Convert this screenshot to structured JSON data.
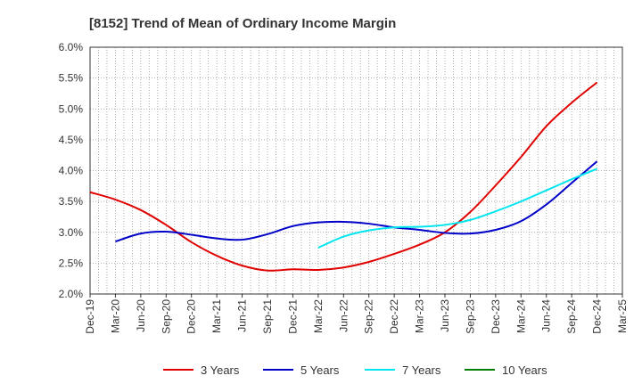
{
  "chart_data": {
    "type": "line",
    "title": "[8152]  Trend of Mean of Ordinary Income Margin",
    "xlabel": "",
    "ylabel": "",
    "x_ticks": [
      "Dec-19",
      "Mar-20",
      "Jun-20",
      "Sep-20",
      "Dec-20",
      "Mar-21",
      "Jun-21",
      "Sep-21",
      "Dec-21",
      "Mar-22",
      "Jun-22",
      "Sep-22",
      "Dec-22",
      "Mar-23",
      "Jun-23",
      "Sep-23",
      "Dec-23",
      "Mar-24",
      "Jun-24",
      "Sep-24",
      "Dec-24",
      "Mar-25"
    ],
    "y_ticks": [
      "2.0%",
      "2.5%",
      "3.0%",
      "3.5%",
      "4.0%",
      "4.5%",
      "5.0%",
      "5.5%",
      "6.0%"
    ],
    "ylim": [
      2.0,
      6.0
    ],
    "grid": true,
    "legend_position": "bottom",
    "series": [
      {
        "name": "3 Years",
        "color": "#e00000",
        "points": [
          [
            "Dec-19",
            3.65
          ],
          [
            "Mar-20",
            3.53
          ],
          [
            "Jun-20",
            3.36
          ],
          [
            "Sep-20",
            3.12
          ],
          [
            "Dec-20",
            2.84
          ],
          [
            "Mar-21",
            2.62
          ],
          [
            "Jun-21",
            2.46
          ],
          [
            "Sep-21",
            2.38
          ],
          [
            "Dec-21",
            2.4
          ],
          [
            "Mar-22",
            2.39
          ],
          [
            "Jun-22",
            2.43
          ],
          [
            "Sep-22",
            2.52
          ],
          [
            "Dec-22",
            2.65
          ],
          [
            "Mar-23",
            2.8
          ],
          [
            "Jun-23",
            3.0
          ],
          [
            "Sep-23",
            3.33
          ],
          [
            "Dec-23",
            3.76
          ],
          [
            "Mar-24",
            4.22
          ],
          [
            "Jun-24",
            4.72
          ],
          [
            "Sep-24",
            5.1
          ],
          [
            "Dec-24",
            5.43
          ]
        ]
      },
      {
        "name": "5 Years",
        "color": "#0000c8",
        "points": [
          [
            "Mar-20",
            2.85
          ],
          [
            "Jun-20",
            2.98
          ],
          [
            "Sep-20",
            3.01
          ],
          [
            "Dec-20",
            2.96
          ],
          [
            "Mar-21",
            2.9
          ],
          [
            "Jun-21",
            2.88
          ],
          [
            "Sep-21",
            2.97
          ],
          [
            "Dec-21",
            3.1
          ],
          [
            "Mar-22",
            3.16
          ],
          [
            "Jun-22",
            3.17
          ],
          [
            "Sep-22",
            3.14
          ],
          [
            "Dec-22",
            3.08
          ],
          [
            "Mar-23",
            3.04
          ],
          [
            "Jun-23",
            2.99
          ],
          [
            "Sep-23",
            2.98
          ],
          [
            "Dec-23",
            3.04
          ],
          [
            "Mar-24",
            3.18
          ],
          [
            "Jun-24",
            3.45
          ],
          [
            "Sep-24",
            3.8
          ],
          [
            "Dec-24",
            4.15
          ]
        ]
      },
      {
        "name": "7 Years",
        "color": "#00e5ee",
        "points": [
          [
            "Mar-22",
            2.75
          ],
          [
            "Jun-22",
            2.93
          ],
          [
            "Sep-22",
            3.03
          ],
          [
            "Dec-22",
            3.08
          ],
          [
            "Mar-23",
            3.09
          ],
          [
            "Jun-23",
            3.12
          ],
          [
            "Sep-23",
            3.2
          ],
          [
            "Dec-23",
            3.34
          ],
          [
            "Mar-24",
            3.5
          ],
          [
            "Jun-24",
            3.68
          ],
          [
            "Sep-24",
            3.86
          ],
          [
            "Dec-24",
            4.03
          ]
        ]
      },
      {
        "name": "10 Years",
        "color": "#008000",
        "points": []
      }
    ]
  }
}
